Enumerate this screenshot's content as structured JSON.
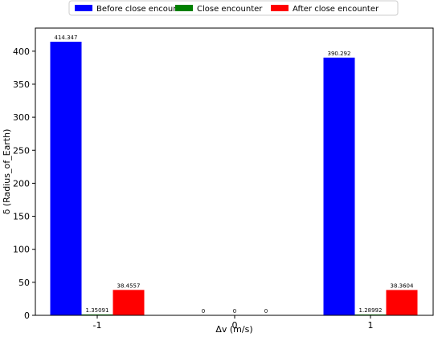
{
  "chart_data": {
    "type": "bar",
    "categories": [
      "-1",
      "0",
      "1"
    ],
    "series": [
      {
        "name": "Before close encounter",
        "color": "#0000ff",
        "values": [
          414.347,
          0,
          390.292
        ],
        "labels": [
          "414.347",
          "0",
          "390.292"
        ]
      },
      {
        "name": "Close encounter",
        "color": "#008000",
        "values": [
          1.35091,
          0,
          1.28992
        ],
        "labels": [
          "1.35091",
          "0",
          "1.28992"
        ]
      },
      {
        "name": "After close encounter",
        "color": "#ff0000",
        "values": [
          38.4557,
          0,
          38.3604
        ],
        "labels": [
          "38.4557",
          "0",
          "38.3604"
        ]
      }
    ],
    "xlabel": "Δv (m/s)",
    "ylabel": "δ (Radius_of_Earth)",
    "ylim": [
      0,
      435
    ],
    "yticks": [
      0,
      50,
      100,
      150,
      200,
      250,
      300,
      350,
      400
    ],
    "grid": false,
    "legend_position": "top-center"
  }
}
